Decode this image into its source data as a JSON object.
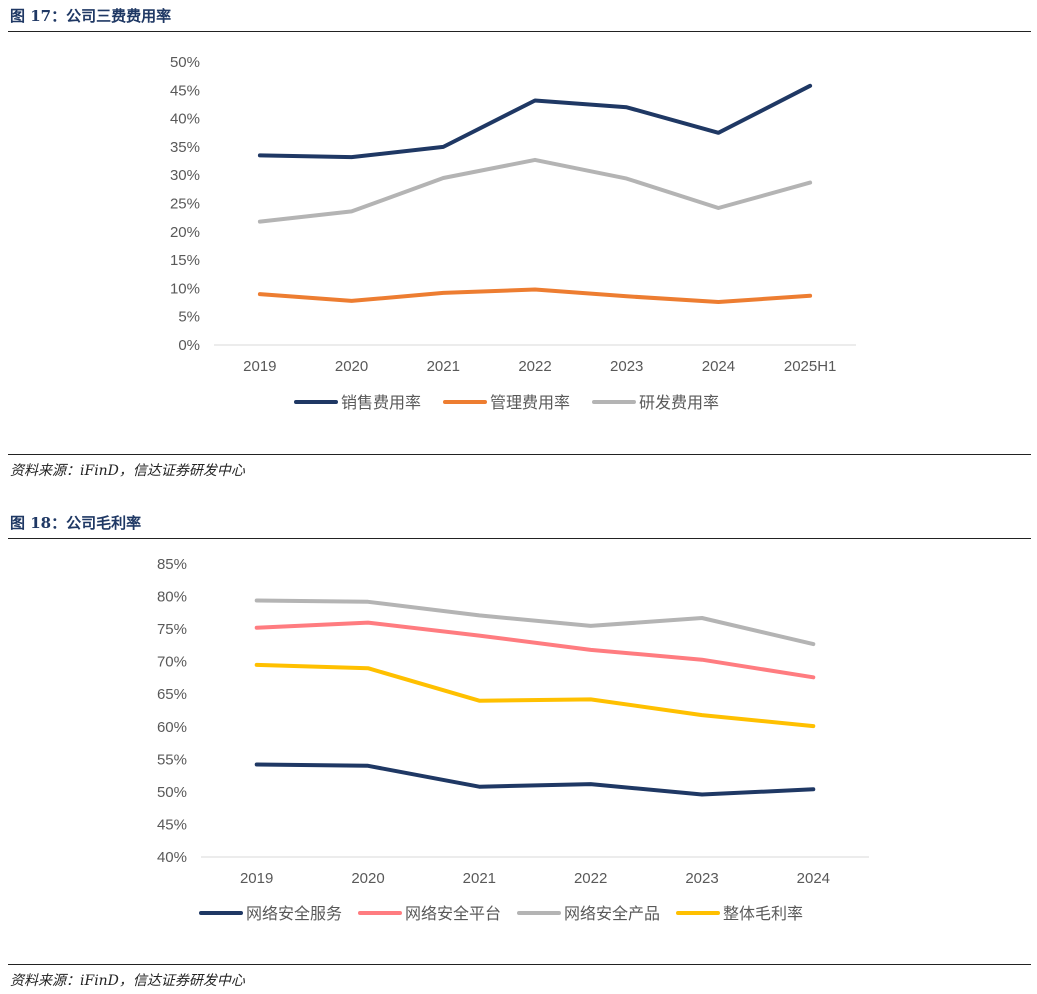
{
  "figures": [
    {
      "title": "图 17：公司三费费用率",
      "source": "资料来源：iFinD，信达证券研发中心"
    },
    {
      "title": "图 18：公司毛利率",
      "source": "资料来源：iFinD，信达证券研发中心"
    }
  ],
  "chart_data": [
    {
      "type": "line",
      "title": "公司三费费用率",
      "categories": [
        "2019",
        "2020",
        "2021",
        "2022",
        "2023",
        "2024",
        "2025H1"
      ],
      "ylim": [
        0,
        50
      ],
      "yticks": [
        0,
        5,
        10,
        15,
        20,
        25,
        30,
        35,
        40,
        45,
        50
      ],
      "ytick_labels": [
        "0%",
        "5%",
        "10%",
        "15%",
        "20%",
        "25%",
        "30%",
        "35%",
        "40%",
        "45%",
        "50%"
      ],
      "legend": "bottom",
      "series": [
        {
          "name": "销售费用率",
          "color": "#1f3864",
          "values": [
            33.5,
            33.2,
            35.0,
            43.2,
            42.0,
            37.5,
            45.8
          ]
        },
        {
          "name": "管理费用率",
          "color": "#ed7d31",
          "values": [
            9.0,
            7.8,
            9.2,
            9.8,
            8.6,
            7.6,
            8.7
          ]
        },
        {
          "name": "研发费用率",
          "color": "#b4b4b4",
          "values": [
            21.8,
            23.6,
            29.5,
            32.7,
            29.4,
            24.2,
            28.7
          ]
        }
      ]
    },
    {
      "type": "line",
      "title": "公司毛利率",
      "categories": [
        "2019",
        "2020",
        "2021",
        "2022",
        "2023",
        "2024"
      ],
      "ylim": [
        40,
        85
      ],
      "yticks": [
        40,
        45,
        50,
        55,
        60,
        65,
        70,
        75,
        80,
        85
      ],
      "ytick_labels": [
        "40%",
        "45%",
        "50%",
        "55%",
        "60%",
        "65%",
        "70%",
        "75%",
        "80%",
        "85%"
      ],
      "legend": "bottom",
      "series": [
        {
          "name": "网络安全服务",
          "color": "#1f3864",
          "values": [
            54.2,
            54.0,
            50.8,
            51.2,
            49.6,
            50.4
          ]
        },
        {
          "name": "网络安全平台",
          "color": "#ff7c80",
          "values": [
            75.2,
            76.0,
            74.0,
            71.8,
            70.3,
            67.6
          ]
        },
        {
          "name": "网络安全产品",
          "color": "#b4b4b4",
          "values": [
            79.4,
            79.2,
            77.1,
            75.5,
            76.7,
            72.7
          ]
        },
        {
          "name": "整体毛利率",
          "color": "#ffc000",
          "values": [
            69.5,
            69.0,
            64.0,
            64.2,
            61.8,
            60.1
          ]
        }
      ]
    }
  ]
}
